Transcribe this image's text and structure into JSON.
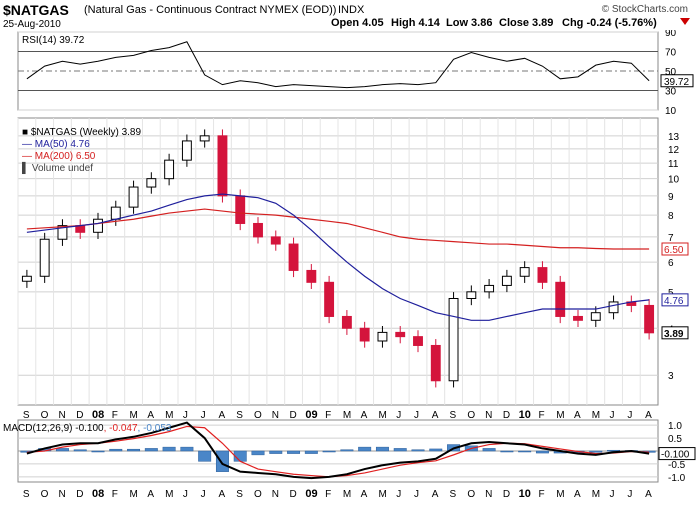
{
  "header": {
    "symbol": "$NATGAS",
    "description": "(Natural Gas - Continuous Contract NYMEX (EOD))",
    "index": "INDX",
    "date": "25-Aug-2010",
    "brand": "© StockCharts.com",
    "open": "Open 4.05",
    "high": "High 4.14",
    "low": "Low 3.86",
    "close": "Close 3.89",
    "chg": "Chg -0.24 (-5.76%)"
  },
  "chart_data": [
    {
      "type": "line",
      "panel": "RSI",
      "legend": "RSI(14) 39.72",
      "last": "39.72",
      "ylim": [
        10,
        90
      ],
      "ytick_labels": [
        "90",
        "70",
        "50",
        "30",
        "10"
      ],
      "ytick_values": [
        90,
        70,
        50,
        30,
        10
      ],
      "x": [
        "2007-09",
        "2007-10",
        "2007-11",
        "2007-12",
        "2008-01",
        "2008-02",
        "2008-03",
        "2008-04",
        "2008-05",
        "2008-06",
        "2008-07",
        "2008-08",
        "2008-09",
        "2008-10",
        "2008-11",
        "2008-12",
        "2009-01",
        "2009-02",
        "2009-03",
        "2009-04",
        "2009-05",
        "2009-06",
        "2009-07",
        "2009-08",
        "2009-09",
        "2009-10",
        "2009-11",
        "2009-12",
        "2010-01",
        "2010-02",
        "2010-03",
        "2010-04",
        "2010-05",
        "2010-06",
        "2010-07",
        "2010-08"
      ],
      "values": [
        42,
        55,
        60,
        57,
        60,
        64,
        66,
        71,
        74,
        80,
        46,
        36,
        40,
        38,
        34,
        36,
        35,
        34,
        33,
        34,
        36,
        37,
        36,
        38,
        62,
        69,
        64,
        60,
        63,
        55,
        42,
        44,
        56,
        60,
        58,
        40
      ]
    },
    {
      "type": "line",
      "panel": "Price",
      "log_scale": true,
      "legend": [
        "$NATGAS (Weekly) 3.89",
        "MA(50) 4.76",
        "MA(200) 6.50",
        "Volume undef"
      ],
      "ytick_labels": [
        "13",
        "12",
        "11",
        "10",
        "9",
        "8",
        "7",
        "6",
        "5",
        "4",
        "3"
      ],
      "ytick_values": [
        13,
        12,
        11,
        10,
        9,
        8,
        7,
        6,
        5,
        4,
        3
      ],
      "ylim": [
        2.5,
        14.5
      ],
      "x_tick_labels": [
        "S",
        "O",
        "N",
        "D",
        "08",
        "F",
        "M",
        "A",
        "M",
        "J",
        "J",
        "A",
        "S",
        "O",
        "N",
        "D",
        "09",
        "F",
        "M",
        "A",
        "M",
        "J",
        "J",
        "A",
        "S",
        "O",
        "N",
        "D",
        "10",
        "F",
        "M",
        "A",
        "M",
        "J",
        "J",
        "A"
      ],
      "series": [
        {
          "name": "$NATGAS (Weekly)",
          "last": "3.89",
          "values": [
            5.5,
            6.9,
            7.5,
            7.2,
            7.8,
            8.4,
            9.5,
            10.0,
            11.2,
            12.6,
            13.0,
            9.0,
            7.6,
            7.0,
            6.7,
            5.7,
            5.3,
            4.3,
            4.0,
            3.7,
            3.9,
            3.8,
            3.6,
            2.9,
            4.8,
            5.0,
            5.2,
            5.5,
            5.8,
            5.3,
            4.3,
            4.2,
            4.4,
            4.7,
            4.6,
            3.89
          ]
        },
        {
          "name": "MA(50)",
          "last": "4.76",
          "values": [
            7.2,
            7.3,
            7.4,
            7.5,
            7.6,
            7.8,
            8.0,
            8.2,
            8.5,
            8.8,
            9.0,
            9.1,
            9.0,
            8.9,
            8.6,
            8.0,
            7.3,
            6.6,
            6.0,
            5.5,
            5.1,
            4.8,
            4.6,
            4.4,
            4.3,
            4.2,
            4.2,
            4.3,
            4.4,
            4.5,
            4.5,
            4.5,
            4.5,
            4.6,
            4.7,
            4.76
          ]
        },
        {
          "name": "MA(200)",
          "last": "6.50",
          "values": [
            7.35,
            7.4,
            7.45,
            7.5,
            7.6,
            7.7,
            7.8,
            7.95,
            8.1,
            8.2,
            8.3,
            8.2,
            8.1,
            8.05,
            8.0,
            7.9,
            7.8,
            7.7,
            7.6,
            7.4,
            7.2,
            7.0,
            6.9,
            6.85,
            6.8,
            6.75,
            6.7,
            6.7,
            6.65,
            6.6,
            6.55,
            6.55,
            6.52,
            6.5,
            6.5,
            6.5
          ]
        }
      ]
    },
    {
      "type": "line",
      "panel": "MACD",
      "legend": "MACD(12,26,9) -0.100, -0.047, -0.053",
      "legend_macd": "MACD(12,26,9) -0.100",
      "legend_signal": ", -0.047",
      "legend_hist": ", -0.053",
      "last": "-0.100",
      "ylim": [
        -1.2,
        1.2
      ],
      "ytick_labels": [
        "1.0",
        "0.5",
        "0.0",
        "-0.5",
        "-1.0"
      ],
      "ytick_values": [
        1.0,
        0.5,
        0.0,
        -0.5,
        -1.0
      ],
      "x_tick_labels": [
        "S",
        "O",
        "N",
        "D",
        "08",
        "F",
        "M",
        "A",
        "M",
        "J",
        "J",
        "A",
        "S",
        "O",
        "N",
        "D",
        "09",
        "F",
        "M",
        "A",
        "M",
        "J",
        "J",
        "A",
        "S",
        "O",
        "N",
        "D",
        "10",
        "F",
        "M",
        "A",
        "M",
        "J",
        "J",
        "A"
      ],
      "series": [
        {
          "name": "MACD",
          "values": [
            -0.1,
            0.1,
            0.25,
            0.3,
            0.3,
            0.45,
            0.55,
            0.7,
            0.9,
            1.1,
            0.5,
            -0.5,
            -0.8,
            -0.85,
            -0.9,
            -1.0,
            -1.05,
            -1.0,
            -0.9,
            -0.7,
            -0.55,
            -0.45,
            -0.4,
            -0.3,
            0.1,
            0.3,
            0.35,
            0.3,
            0.25,
            0.1,
            0.0,
            -0.1,
            -0.15,
            -0.05,
            0.0,
            -0.1
          ]
        },
        {
          "name": "Signal",
          "values": [
            -0.05,
            0.0,
            0.15,
            0.25,
            0.3,
            0.38,
            0.48,
            0.6,
            0.75,
            0.95,
            0.9,
            0.3,
            -0.4,
            -0.7,
            -0.8,
            -0.9,
            -0.95,
            -1.0,
            -0.95,
            -0.85,
            -0.7,
            -0.55,
            -0.45,
            -0.38,
            -0.15,
            0.1,
            0.25,
            0.3,
            0.28,
            0.18,
            0.08,
            -0.02,
            -0.1,
            -0.08,
            -0.02,
            -0.047
          ]
        },
        {
          "name": "Histogram",
          "values": [
            -0.05,
            0.1,
            0.1,
            0.05,
            0.0,
            0.07,
            0.07,
            0.1,
            0.15,
            0.15,
            -0.4,
            -0.8,
            -0.4,
            -0.15,
            -0.1,
            -0.1,
            -0.1,
            0.0,
            0.05,
            0.15,
            0.15,
            0.1,
            0.05,
            0.08,
            0.25,
            0.2,
            0.1,
            0.0,
            -0.03,
            -0.08,
            -0.08,
            -0.08,
            -0.05,
            0.03,
            0.02,
            -0.053
          ]
        }
      ]
    }
  ],
  "colors": {
    "up": "#000000",
    "down": "#d4143c",
    "ma50": "#1f1f9c",
    "ma200": "#d42020",
    "macd": "#000000",
    "signal": "#e02020",
    "hist": "#4a86c8",
    "grid": "#d0d0d0"
  }
}
